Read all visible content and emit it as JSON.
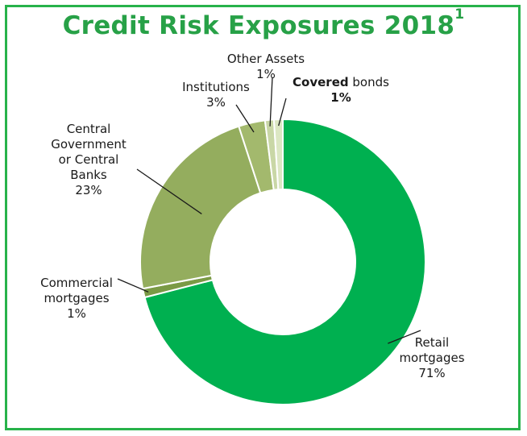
{
  "title": "Credit Risk Exposures 2018",
  "title_footnote": "1",
  "chart_data": {
    "type": "pie",
    "title": "Credit Risk Exposures 2018",
    "donut": true,
    "slices": [
      {
        "name": "Retail mortgages",
        "label_lines": [
          "Retail",
          "mortgages"
        ],
        "value_label": "71%",
        "value": 71,
        "color": "#00b050"
      },
      {
        "name": "Commercial mortgages",
        "label_lines": [
          "Commercial",
          "mortgages"
        ],
        "value_label": "1%",
        "value": 1,
        "color": "#7a9a45"
      },
      {
        "name": "Central Government or Central Banks",
        "label_lines": [
          "Central",
          "Government",
          "or Central",
          "Banks"
        ],
        "value_label": "23%",
        "value": 23,
        "color": "#94ad5e"
      },
      {
        "name": "Institutions",
        "label_lines": [
          "Institutions"
        ],
        "value_label": "3%",
        "value": 3,
        "color": "#a3b96d"
      },
      {
        "name": "Other Assets",
        "label_lines": [
          "Other Assets"
        ],
        "value_label": "1%",
        "value": 1,
        "color": "#c9d7a6"
      },
      {
        "name": "Covered bonds",
        "label_lines": [
          "Covered bonds"
        ],
        "value_label": "1%",
        "value": 1,
        "color": "#dce7c3"
      }
    ]
  }
}
